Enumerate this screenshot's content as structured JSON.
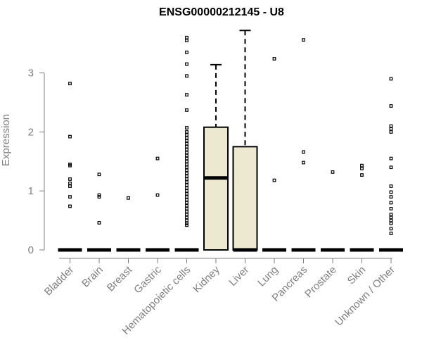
{
  "chart_data": {
    "type": "box",
    "title": "ENSG00000212145 - U8",
    "xlabel": "",
    "ylabel": "Expression",
    "ylim": [
      0,
      3.75
    ],
    "yticks": [
      0,
      1,
      2,
      3
    ],
    "box_fill": "#ede8d0",
    "categories": [
      "Bladder",
      "Brain",
      "Breast",
      "Gastric",
      "Hematopoietic cells",
      "Kidney",
      "Liver",
      "Lung",
      "Pancreas",
      "Prostate",
      "Skin",
      "Unknown / Other"
    ],
    "series": [
      {
        "category": "Bladder",
        "q1": 0,
        "median": 0,
        "q3": 0,
        "whisker_low": 0,
        "whisker_high": 0,
        "outliers": [
          2.82,
          1.92,
          1.45,
          1.43,
          1.2,
          1.13,
          1.08,
          0.9,
          0.74
        ]
      },
      {
        "category": "Brain",
        "q1": 0,
        "median": 0,
        "q3": 0,
        "whisker_low": 0,
        "whisker_high": 0,
        "outliers": [
          1.28,
          0.93,
          0.9,
          0.46
        ]
      },
      {
        "category": "Breast",
        "q1": 0,
        "median": 0,
        "q3": 0,
        "whisker_low": 0,
        "whisker_high": 0,
        "outliers": [
          0.88
        ]
      },
      {
        "category": "Gastric",
        "q1": 0,
        "median": 0,
        "q3": 0,
        "whisker_low": 0,
        "whisker_high": 0,
        "outliers": [
          1.55,
          0.93
        ]
      },
      {
        "category": "Hematopoietic cells",
        "q1": 0,
        "median": 0,
        "q3": 0,
        "whisker_low": 0,
        "whisker_high": 0,
        "outliers": [
          3.6,
          3.55,
          3.35,
          3.15,
          2.95,
          2.63,
          2.37,
          2.07,
          2.0,
          1.95,
          1.9,
          1.85,
          1.8,
          1.75,
          1.7,
          1.65,
          1.6,
          1.55,
          1.5,
          1.45,
          1.4,
          1.35,
          1.3,
          1.25,
          1.2,
          1.15,
          1.1,
          1.05,
          1.0,
          0.95,
          0.9,
          0.85,
          0.8,
          0.75,
          0.7,
          0.65,
          0.6,
          0.55,
          0.5,
          0.45,
          0.42
        ]
      },
      {
        "category": "Kidney",
        "q1": 0,
        "median": 1.22,
        "q3": 2.08,
        "whisker_low": 0,
        "whisker_high": 3.14,
        "outliers": []
      },
      {
        "category": "Liver",
        "q1": 0,
        "median": 0,
        "q3": 1.75,
        "whisker_low": 0,
        "whisker_high": 3.72,
        "outliers": []
      },
      {
        "category": "Lung",
        "q1": 0,
        "median": 0,
        "q3": 0,
        "whisker_low": 0,
        "whisker_high": 0,
        "outliers": [
          3.24,
          1.18
        ]
      },
      {
        "category": "Pancreas",
        "q1": 0,
        "median": 0,
        "q3": 0,
        "whisker_low": 0,
        "whisker_high": 0,
        "outliers": [
          3.56,
          1.66,
          1.48
        ]
      },
      {
        "category": "Prostate",
        "q1": 0,
        "median": 0,
        "q3": 0,
        "whisker_low": 0,
        "whisker_high": 0,
        "outliers": [
          1.32
        ]
      },
      {
        "category": "Skin",
        "q1": 0,
        "median": 0,
        "q3": 0,
        "whisker_low": 0,
        "whisker_high": 0,
        "outliers": [
          1.43,
          1.38,
          1.27
        ]
      },
      {
        "category": "Unknown / Other",
        "q1": 0,
        "median": 0,
        "q3": 0,
        "whisker_low": 0,
        "whisker_high": 0,
        "outliers": [
          2.9,
          2.44,
          2.1,
          2.05,
          2.0,
          1.55,
          1.4,
          1.08,
          0.98,
          0.9,
          0.8,
          0.7,
          0.6,
          0.55,
          0.5,
          0.45,
          0.36,
          0.28
        ]
      }
    ]
  }
}
